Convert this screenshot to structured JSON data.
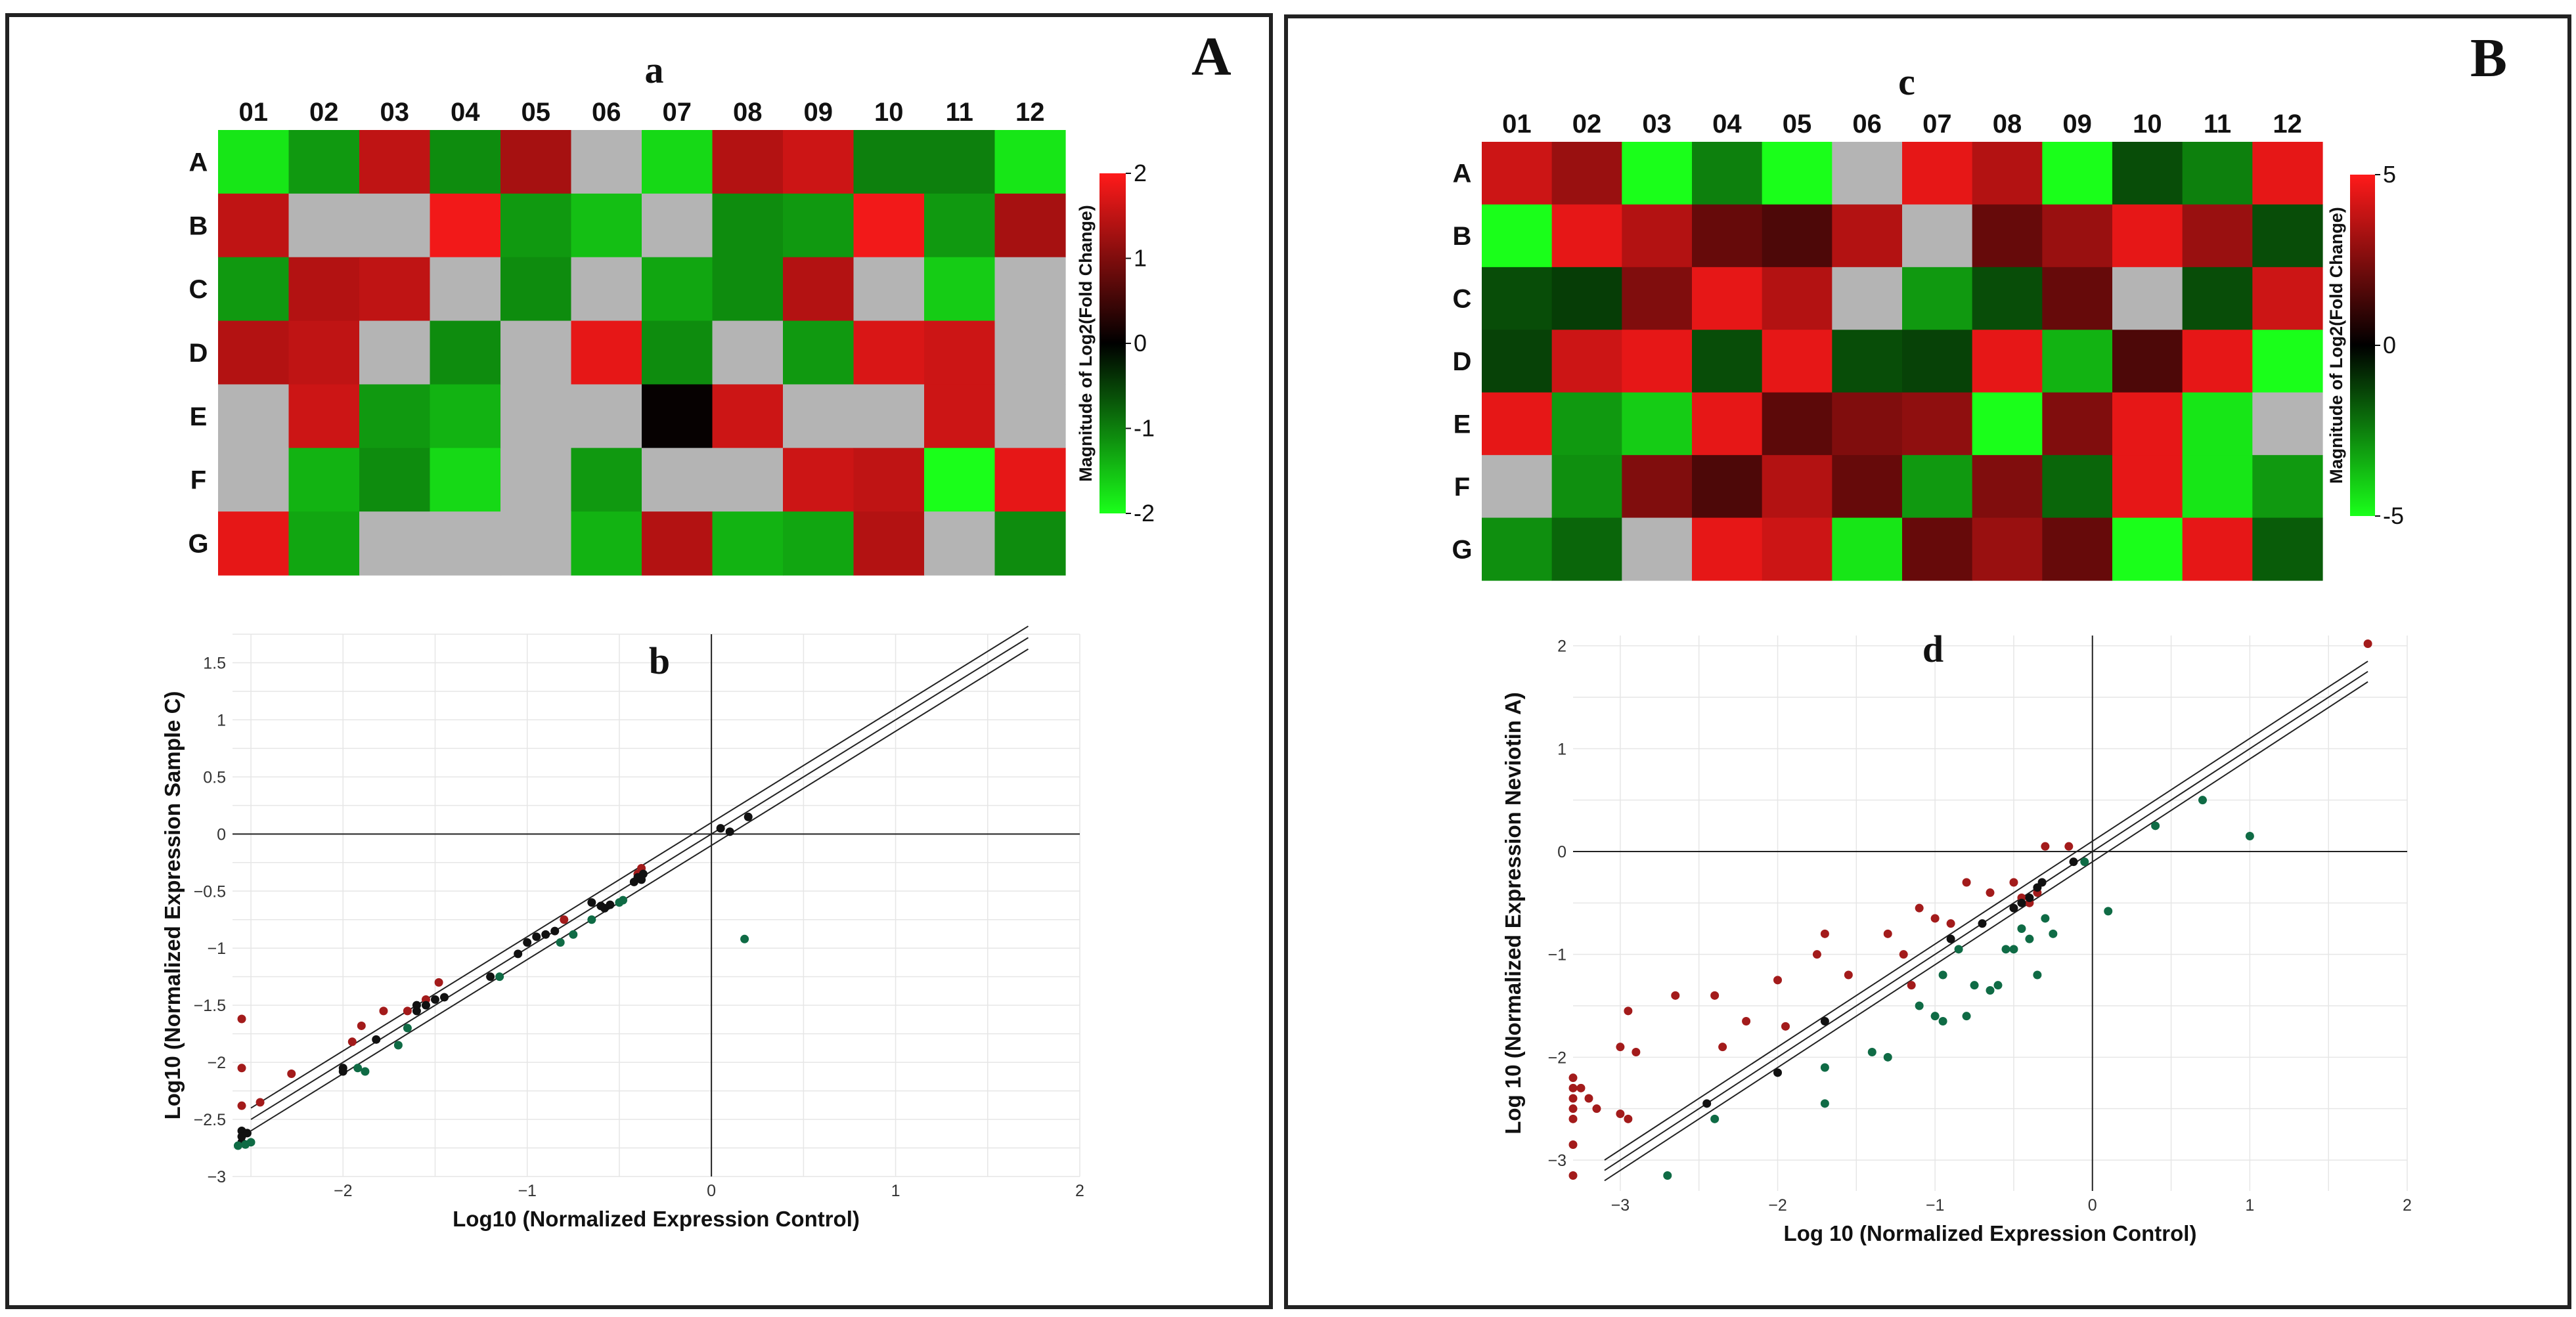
{
  "figure_labels": {
    "A": "A",
    "B": "B"
  },
  "colors": {
    "up": "#ff1a1a",
    "zero": "#000000",
    "down": "#1aff1a",
    "na": "#b4b4b4",
    "dot_up": "#a31b1b",
    "dot_mid": "#111111",
    "dot_down": "#0f6b45",
    "grid": "#e6e6e6"
  },
  "chart_data": [
    {
      "id": "a",
      "type": "heatmap",
      "title": "a",
      "columns": [
        "01",
        "02",
        "03",
        "04",
        "05",
        "06",
        "07",
        "08",
        "09",
        "10",
        "11",
        "12"
      ],
      "rows": [
        "A",
        "B",
        "C",
        "D",
        "E",
        "F",
        "G"
      ],
      "values": [
        [
          -1.8,
          -1.2,
          1.5,
          -1.1,
          1.3,
          null,
          -1.7,
          1.4,
          1.6,
          -1.0,
          -1.0,
          -1.8
        ],
        [
          1.5,
          null,
          null,
          1.9,
          -1.2,
          -1.5,
          null,
          -1.1,
          -1.2,
          1.9,
          -1.2,
          1.3
        ],
        [
          -1.2,
          1.4,
          1.5,
          null,
          -1.1,
          null,
          -1.3,
          -1.1,
          1.4,
          null,
          -1.6,
          null
        ],
        [
          1.4,
          1.5,
          null,
          -1.1,
          null,
          1.8,
          -1.1,
          null,
          -1.2,
          1.7,
          1.6,
          null
        ],
        [
          null,
          1.6,
          -1.2,
          -1.4,
          null,
          null,
          0.05,
          1.6,
          null,
          null,
          1.6,
          null
        ],
        [
          null,
          -1.4,
          -1.1,
          -1.7,
          null,
          -1.2,
          null,
          null,
          1.6,
          1.5,
          -2.0,
          1.8
        ],
        [
          1.8,
          -1.3,
          null,
          null,
          null,
          -1.4,
          1.4,
          -1.4,
          -1.3,
          1.4,
          null,
          -1.1
        ]
      ],
      "colorbar": {
        "label": "Magnitude of Log2(Fold Change)",
        "min": -2,
        "max": 2,
        "ticks": [
          "2",
          "1",
          "0",
          "-1",
          "-2"
        ]
      }
    },
    {
      "id": "b",
      "type": "scatter",
      "title": "b",
      "xlabel": "Log10 (Normalized Expression Control)",
      "ylabel": "Log10 (Normalized Expression Sample C)",
      "xlim": [
        -2.6,
        2.0
      ],
      "ylim": [
        -3.0,
        1.75
      ],
      "xticks": [
        -2,
        -1,
        0,
        1,
        2
      ],
      "xtick_labels": [
        "−2",
        "−1",
        "0",
        "1",
        "2"
      ],
      "yticks": [
        -3,
        -2.5,
        -2,
        -1.5,
        -1,
        -0.5,
        0,
        0.5,
        1,
        1.5
      ],
      "ytick_labels": [
        "−3",
        "−2.5",
        "−2",
        "−1.5",
        "−1",
        "−0.5",
        "0",
        "0.5",
        "1",
        "1.5"
      ],
      "diagonal": {
        "x_range": [
          -2.5,
          1.72
        ],
        "offset": 0.1
      },
      "series": [
        {
          "name": "up",
          "points": [
            [
              -2.55,
              -1.62
            ],
            [
              -2.55,
              -2.05
            ],
            [
              -2.55,
              -2.38
            ],
            [
              -2.45,
              -2.35
            ],
            [
              -2.28,
              -2.1
            ],
            [
              -1.95,
              -1.82
            ],
            [
              -1.9,
              -1.68
            ],
            [
              -1.78,
              -1.55
            ],
            [
              -1.65,
              -1.55
            ],
            [
              -1.55,
              -1.45
            ],
            [
              -1.48,
              -1.3
            ],
            [
              -0.8,
              -0.75
            ],
            [
              -0.38,
              -0.3
            ],
            [
              -0.4,
              -0.35
            ]
          ]
        },
        {
          "name": "none",
          "points": [
            [
              -2.55,
              -2.6
            ],
            [
              -2.55,
              -2.65
            ],
            [
              -2.55,
              -2.7
            ],
            [
              -2.52,
              -2.62
            ],
            [
              -2.0,
              -2.05
            ],
            [
              -2.0,
              -2.08
            ],
            [
              -1.82,
              -1.8
            ],
            [
              -1.6,
              -1.55
            ],
            [
              -1.6,
              -1.5
            ],
            [
              -1.55,
              -1.5
            ],
            [
              -1.5,
              -1.45
            ],
            [
              -1.45,
              -1.43
            ],
            [
              -1.2,
              -1.25
            ],
            [
              -1.05,
              -1.05
            ],
            [
              -1.0,
              -0.95
            ],
            [
              -0.95,
              -0.9
            ],
            [
              -0.9,
              -0.88
            ],
            [
              -0.85,
              -0.85
            ],
            [
              -0.65,
              -0.6
            ],
            [
              -0.6,
              -0.63
            ],
            [
              -0.58,
              -0.65
            ],
            [
              -0.55,
              -0.62
            ],
            [
              -0.42,
              -0.42
            ],
            [
              -0.4,
              -0.38
            ],
            [
              -0.38,
              -0.4
            ],
            [
              -0.37,
              -0.35
            ],
            [
              0.05,
              0.05
            ],
            [
              0.1,
              0.02
            ],
            [
              0.2,
              0.15
            ]
          ]
        },
        {
          "name": "down",
          "points": [
            [
              -2.57,
              -2.73
            ],
            [
              -2.53,
              -2.72
            ],
            [
              -2.5,
              -2.7
            ],
            [
              -1.92,
              -2.05
            ],
            [
              -1.88,
              -2.08
            ],
            [
              -1.7,
              -1.85
            ],
            [
              -1.65,
              -1.7
            ],
            [
              -1.15,
              -1.25
            ],
            [
              -0.82,
              -0.95
            ],
            [
              -0.75,
              -0.88
            ],
            [
              -0.65,
              -0.75
            ],
            [
              -0.5,
              -0.6
            ],
            [
              -0.48,
              -0.58
            ],
            [
              0.18,
              -0.92
            ]
          ]
        }
      ]
    },
    {
      "id": "c",
      "type": "heatmap",
      "title": "c",
      "columns": [
        "01",
        "02",
        "03",
        "04",
        "05",
        "06",
        "07",
        "08",
        "09",
        "10",
        "11",
        "12"
      ],
      "rows": [
        "A",
        "B",
        "C",
        "D",
        "E",
        "F",
        "G"
      ],
      "values": [
        [
          4.0,
          3.0,
          -5.0,
          -2.5,
          -5.0,
          null,
          4.5,
          3.5,
          -5.0,
          -1.5,
          -2.5,
          4.5
        ],
        [
          -5.0,
          4.5,
          3.5,
          2.0,
          1.5,
          3.5,
          null,
          2.0,
          3.0,
          4.5,
          3.0,
          -1.5
        ],
        [
          -1.5,
          -1.2,
          2.5,
          4.5,
          3.5,
          null,
          -3.0,
          -1.5,
          2.0,
          null,
          -1.5,
          4.0
        ],
        [
          -1.3,
          4.0,
          4.5,
          -1.5,
          4.5,
          -1.5,
          -1.3,
          4.5,
          -3.5,
          1.5,
          4.5,
          -5.0
        ],
        [
          4.5,
          -3.0,
          -4.0,
          4.5,
          1.8,
          2.5,
          2.8,
          -5.0,
          2.5,
          4.5,
          -4.5,
          null
        ],
        [
          null,
          -2.8,
          2.5,
          1.5,
          3.5,
          2.0,
          -3.0,
          2.5,
          -2.0,
          4.5,
          -4.5,
          -3.0
        ],
        [
          -2.8,
          -2.0,
          null,
          4.5,
          4.0,
          -4.5,
          2.0,
          3.0,
          2.0,
          -5.0,
          4.5,
          -1.8
        ]
      ],
      "colorbar": {
        "label": "Magnitude of Log2(Fold Change)",
        "min": -5,
        "max": 5,
        "ticks": [
          "5",
          "0",
          "-5"
        ]
      }
    },
    {
      "id": "d",
      "type": "scatter",
      "title": "d",
      "xlabel": "Log 10 (Normalized Expression Control)",
      "ylabel": "Log 10 (Normalized Expression Neviotin A)",
      "xlim": [
        -3.3,
        2.0
      ],
      "ylim": [
        -3.3,
        2.1
      ],
      "xticks": [
        -3,
        -2,
        -1,
        0,
        1,
        2
      ],
      "xtick_labels": [
        "−3",
        "−2",
        "−1",
        "0",
        "1",
        "2"
      ],
      "yticks": [
        -3,
        -2,
        -1,
        0,
        1,
        2
      ],
      "ytick_labels": [
        "−3",
        "−2",
        "−1",
        "0",
        "1",
        "2"
      ],
      "diagonal": {
        "x_range": [
          -3.1,
          1.75
        ],
        "offset": 0.1
      },
      "series": [
        {
          "name": "up",
          "points": [
            [
              -3.3,
              -2.2
            ],
            [
              -3.3,
              -2.3
            ],
            [
              -3.3,
              -2.4
            ],
            [
              -3.3,
              -2.5
            ],
            [
              -3.3,
              -2.6
            ],
            [
              -3.3,
              -2.85
            ],
            [
              -3.3,
              -3.15
            ],
            [
              -3.25,
              -2.3
            ],
            [
              -3.2,
              -2.4
            ],
            [
              -3.15,
              -2.5
            ],
            [
              -3.0,
              -2.55
            ],
            [
              -2.95,
              -2.6
            ],
            [
              -3.0,
              -1.9
            ],
            [
              -2.9,
              -1.95
            ],
            [
              -2.95,
              -1.55
            ],
            [
              -2.65,
              -1.4
            ],
            [
              -2.4,
              -1.4
            ],
            [
              -2.35,
              -1.9
            ],
            [
              -2.2,
              -1.65
            ],
            [
              -2.0,
              -1.25
            ],
            [
              -1.95,
              -1.7
            ],
            [
              -1.75,
              -1.0
            ],
            [
              -1.7,
              -0.8
            ],
            [
              -1.55,
              -1.2
            ],
            [
              -1.3,
              -0.8
            ],
            [
              -1.2,
              -1.0
            ],
            [
              -1.15,
              -1.3
            ],
            [
              -1.1,
              -0.55
            ],
            [
              -1.0,
              -0.65
            ],
            [
              -0.9,
              -0.7
            ],
            [
              -0.8,
              -0.3
            ],
            [
              -0.65,
              -0.4
            ],
            [
              -0.5,
              -0.3
            ],
            [
              -0.3,
              0.05
            ],
            [
              -0.15,
              0.05
            ],
            [
              -0.45,
              -0.45
            ],
            [
              -0.4,
              -0.5
            ],
            [
              -0.35,
              -0.4
            ],
            [
              1.75,
              2.02
            ]
          ]
        },
        {
          "name": "none",
          "points": [
            [
              -2.45,
              -2.45
            ],
            [
              -1.7,
              -1.65
            ],
            [
              -2.0,
              -2.15
            ],
            [
              -0.9,
              -0.85
            ],
            [
              -0.7,
              -0.7
            ],
            [
              -0.5,
              -0.55
            ],
            [
              -0.45,
              -0.5
            ],
            [
              -0.4,
              -0.45
            ],
            [
              -0.35,
              -0.35
            ],
            [
              -0.32,
              -0.3
            ],
            [
              -0.12,
              -0.1
            ]
          ]
        },
        {
          "name": "down",
          "points": [
            [
              -2.7,
              -3.15
            ],
            [
              -2.4,
              -2.6
            ],
            [
              -1.7,
              -2.1
            ],
            [
              -1.7,
              -2.45
            ],
            [
              -1.4,
              -1.95
            ],
            [
              -1.3,
              -2.0
            ],
            [
              -1.1,
              -1.5
            ],
            [
              -1.0,
              -1.6
            ],
            [
              -0.95,
              -1.2
            ],
            [
              -0.95,
              -1.65
            ],
            [
              -0.85,
              -0.95
            ],
            [
              -0.8,
              -1.6
            ],
            [
              -0.75,
              -1.3
            ],
            [
              -0.65,
              -1.35
            ],
            [
              -0.6,
              -1.3
            ],
            [
              -0.55,
              -0.95
            ],
            [
              -0.5,
              -0.95
            ],
            [
              -0.45,
              -0.75
            ],
            [
              -0.4,
              -0.85
            ],
            [
              -0.35,
              -1.2
            ],
            [
              -0.3,
              -0.65
            ],
            [
              -0.25,
              -0.8
            ],
            [
              -0.05,
              -0.1
            ],
            [
              0.1,
              -0.58
            ],
            [
              0.4,
              0.25
            ],
            [
              0.7,
              0.5
            ],
            [
              1.0,
              0.15
            ]
          ]
        }
      ]
    }
  ]
}
